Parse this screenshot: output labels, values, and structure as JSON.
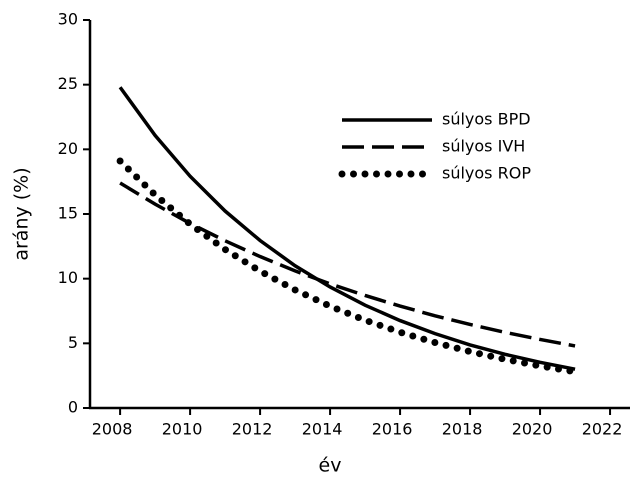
{
  "chart_data": {
    "type": "line",
    "xlabel": "év",
    "ylabel": "arány (%)",
    "x": [
      2008,
      2009,
      2010,
      2011,
      2012,
      2013,
      2014,
      2015,
      2016,
      2017,
      2018,
      2019,
      2020,
      2021
    ],
    "series": [
      {
        "name": "súlyos BPD",
        "color": "#000000",
        "style": "solid",
        "values": [
          24.8,
          21.08,
          17.92,
          15.23,
          12.95,
          11.0,
          9.36,
          7.95,
          6.76,
          5.75,
          4.88,
          4.15,
          3.53,
          3.0
        ]
      },
      {
        "name": "súlyos IVH",
        "color": "#000000",
        "style": "dashed",
        "values": [
          17.4,
          15.76,
          14.27,
          12.93,
          11.71,
          10.6,
          9.6,
          8.7,
          7.88,
          7.13,
          6.46,
          5.85,
          5.3,
          4.8
        ]
      },
      {
        "name": "súlyos ROP",
        "color": "#000000",
        "style": "dotted",
        "values": [
          19.1,
          16.48,
          14.22,
          12.26,
          10.58,
          9.13,
          7.87,
          6.79,
          5.86,
          5.06,
          4.36,
          3.76,
          3.25,
          2.8
        ]
      }
    ],
    "xlim": [
      2007.14,
      2022.57
    ],
    "xticks": [
      2008,
      2010,
      2012,
      2014,
      2016,
      2018,
      2020,
      2022
    ],
    "ylim": [
      0,
      30
    ],
    "yticks": [
      0,
      5,
      10,
      15,
      20,
      25,
      30
    ],
    "grid": false
  }
}
